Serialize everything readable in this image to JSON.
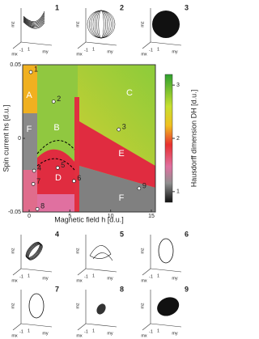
{
  "chart_data": {
    "type": "heatmap",
    "xlabel": "Magnetic field h [d.u.]",
    "ylabel": "Spin current hs [d.u.]",
    "xlim": [
      -0.8,
      15.5
    ],
    "xticks": [
      0,
      5,
      10,
      15
    ],
    "ylim": [
      -0.05,
      0.05
    ],
    "yticks": [
      -0.05,
      0,
      0.05
    ],
    "regions": [
      "A",
      "B",
      "C",
      "D",
      "E",
      "F",
      "F"
    ],
    "points": {
      "labels": [
        "1",
        "2",
        "3",
        "4",
        "5",
        "6",
        "7",
        "8",
        "9"
      ],
      "x": [
        0.2,
        3,
        11,
        0.6,
        3.5,
        5.5,
        0.5,
        1,
        13.5
      ],
      "y": [
        0.045,
        0.025,
        0.006,
        -0.022,
        -0.02,
        -0.029,
        -0.031,
        -0.048,
        -0.034
      ]
    },
    "colorbar": {
      "label": "Hausdorff dimension DH [d.u.]",
      "lim": [
        0.8,
        3.2
      ],
      "ticks": [
        1,
        2,
        3
      ]
    },
    "inset_axes": {
      "x": "mx",
      "y": "my",
      "z": "mz",
      "low": "-1",
      "high": "1"
    },
    "insets": [
      "1",
      "2",
      "3",
      "4",
      "5",
      "6",
      "7",
      "8",
      "9"
    ]
  }
}
